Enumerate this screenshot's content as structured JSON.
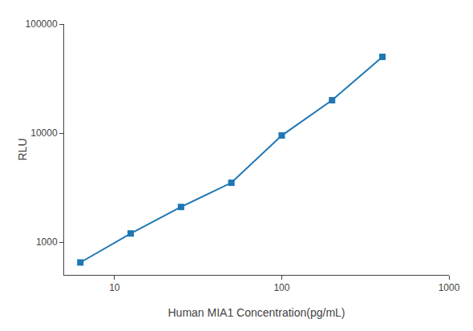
{
  "chart_data": {
    "type": "line",
    "x": [
      6.25,
      12.5,
      25,
      50,
      100,
      200,
      400
    ],
    "values": [
      650,
      1200,
      2100,
      3500,
      9500,
      20000,
      50000
    ],
    "xlabel": "Human MIA1 Concentration(pg/mL)",
    "ylabel": "RLU",
    "xlim": [
      5,
      1000
    ],
    "ylim": [
      500,
      100000
    ],
    "xticks": [
      10,
      100,
      1000
    ],
    "yticks": [
      1000,
      10000,
      100000
    ],
    "log": true,
    "marker": "square",
    "line_style": "solid",
    "grid": false
  }
}
